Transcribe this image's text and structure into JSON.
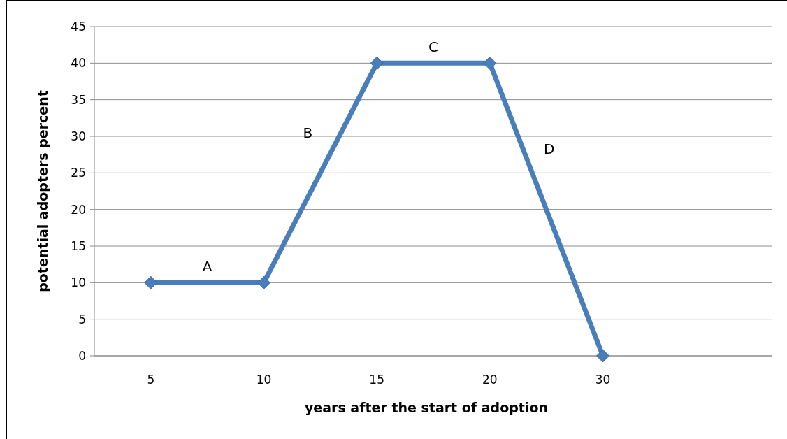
{
  "chart_data": {
    "type": "line",
    "xlabel": "years after the start of adoption",
    "ylabel": "potential adopters percent",
    "categories": [
      "5",
      "10",
      "15",
      "20",
      "30",
      null
    ],
    "series": [
      {
        "color": "#4a7ebb",
        "values": [
          10,
          10,
          40,
          40,
          0,
          null
        ]
      }
    ],
    "ylim": [
      0,
      45
    ],
    "yticks": [
      0,
      5,
      10,
      15,
      20,
      25,
      30,
      35,
      40,
      45
    ],
    "grid": "y",
    "marker": "diamond",
    "line_style": "solid",
    "annotations": [
      "A",
      "B",
      "C",
      "D"
    ]
  }
}
